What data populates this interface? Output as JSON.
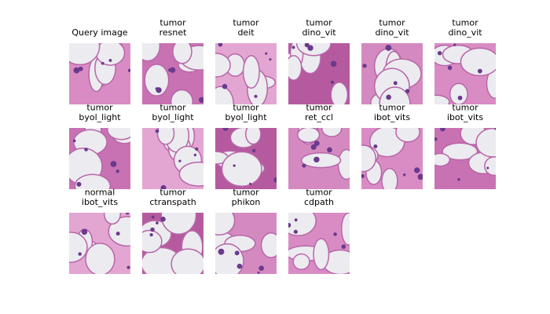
{
  "cells": [
    {
      "lines": [
        "Query image"
      ]
    },
    {
      "lines": [
        "tumor",
        "resnet"
      ]
    },
    {
      "lines": [
        "tumor",
        "deit"
      ]
    },
    {
      "lines": [
        "tumor",
        "dino_vit"
      ]
    },
    {
      "lines": [
        "tumor",
        "dino_vit"
      ]
    },
    {
      "lines": [
        "tumor",
        "dino_vit"
      ]
    },
    {
      "lines": [
        "tumor",
        "byol_light"
      ]
    },
    {
      "lines": [
        "tumor",
        "byol_light"
      ]
    },
    {
      "lines": [
        "tumor",
        "byol_light"
      ]
    },
    {
      "lines": [
        "tumor",
        "ret_ccl"
      ]
    },
    {
      "lines": [
        "tumor",
        "ibot_vits"
      ]
    },
    {
      "lines": [
        "tumor",
        "ibot_vits"
      ]
    },
    {
      "lines": [
        "normal",
        "ibot_vits"
      ]
    },
    {
      "lines": [
        "tumor",
        "ctranspath"
      ]
    },
    {
      "lines": [
        "tumor",
        "phikon"
      ]
    },
    {
      "lines": [
        "tumor",
        "cdpath"
      ]
    }
  ]
}
